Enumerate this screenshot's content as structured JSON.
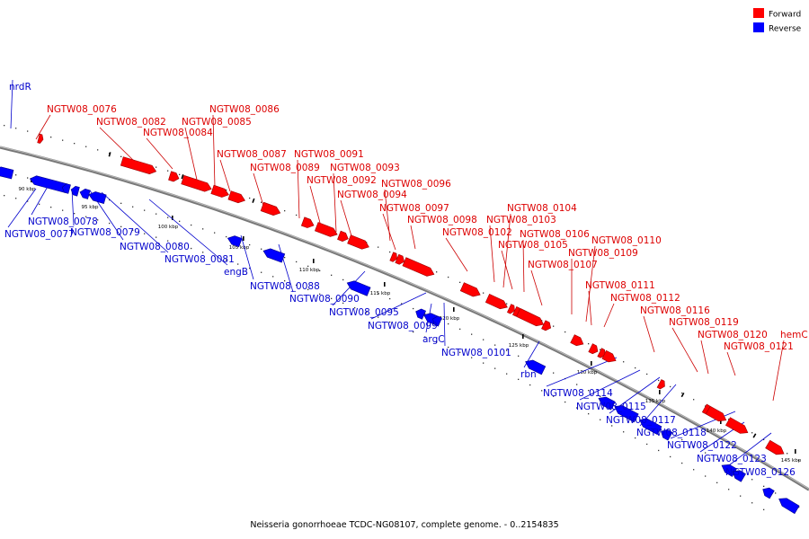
{
  "caption": "Neisseria gonorrhoeae TCDC-NG08107, complete genome. - 0..2154835",
  "colors": {
    "forward": "#ff0000",
    "reverse": "#0000ff",
    "forward_label": "#dd0000",
    "reverse_label": "#0000cc",
    "backbone": "#888888"
  },
  "legend": [
    {
      "label": "Forward",
      "color": "#ff0000"
    },
    {
      "label": "Reverse",
      "color": "#0000ff"
    }
  ],
  "ticks": [
    "90 kbp",
    "95 kbp",
    "100 kbp",
    "105 kbp",
    "110 kbp",
    "115 kbp",
    "120 kbp",
    "125 kbp",
    "130 kbp",
    "135 kbp",
    "140 kbp",
    "145 kbp"
  ],
  "genes": [
    {
      "name": "nrdR",
      "strand": "reverse"
    },
    {
      "name": "NGTW08_0076",
      "strand": "forward"
    },
    {
      "name": "NGTW08_0077",
      "strand": "reverse"
    },
    {
      "name": "NGTW08_0078",
      "strand": "reverse"
    },
    {
      "name": "NGTW08_0079",
      "strand": "reverse"
    },
    {
      "name": "NGTW08_0080",
      "strand": "reverse"
    },
    {
      "name": "NGTW08_0081",
      "strand": "reverse"
    },
    {
      "name": "NGTW08_0082",
      "strand": "forward"
    },
    {
      "name": "NGTW08_0084",
      "strand": "forward"
    },
    {
      "name": "NGTW08_0085",
      "strand": "forward"
    },
    {
      "name": "NGTW08_0086",
      "strand": "forward"
    },
    {
      "name": "NGTW08_0087",
      "strand": "forward"
    },
    {
      "name": "NGTW08_0088",
      "strand": "reverse"
    },
    {
      "name": "NGTW08_0089",
      "strand": "forward"
    },
    {
      "name": "engB",
      "strand": "reverse"
    },
    {
      "name": "NGTW08_0090",
      "strand": "reverse"
    },
    {
      "name": "NGTW08_0091",
      "strand": "forward"
    },
    {
      "name": "NGTW08_0092",
      "strand": "forward"
    },
    {
      "name": "NGTW08_0093",
      "strand": "forward"
    },
    {
      "name": "NGTW08_0094",
      "strand": "forward"
    },
    {
      "name": "NGTW08_0095",
      "strand": "reverse"
    },
    {
      "name": "NGTW08_0096",
      "strand": "forward"
    },
    {
      "name": "NGTW08_0097",
      "strand": "forward"
    },
    {
      "name": "NGTW08_0098",
      "strand": "forward"
    },
    {
      "name": "NGTW08_0099",
      "strand": "reverse"
    },
    {
      "name": "argC",
      "strand": "reverse"
    },
    {
      "name": "NGTW08_0101",
      "strand": "reverse"
    },
    {
      "name": "NGTW08_0102",
      "strand": "forward"
    },
    {
      "name": "NGTW08_0103",
      "strand": "forward"
    },
    {
      "name": "NGTW08_0104",
      "strand": "forward"
    },
    {
      "name": "NGTW08_0105",
      "strand": "forward"
    },
    {
      "name": "NGTW08_0106",
      "strand": "forward"
    },
    {
      "name": "NGTW08_0107",
      "strand": "forward"
    },
    {
      "name": "rbn",
      "strand": "reverse"
    },
    {
      "name": "NGTW08_0109",
      "strand": "forward"
    },
    {
      "name": "NGTW08_0110",
      "strand": "forward"
    },
    {
      "name": "NGTW08_0111",
      "strand": "forward"
    },
    {
      "name": "NGTW08_0112",
      "strand": "forward"
    },
    {
      "name": "NGTW08_0114",
      "strand": "reverse"
    },
    {
      "name": "NGTW08_0115",
      "strand": "reverse"
    },
    {
      "name": "NGTW08_0116",
      "strand": "forward"
    },
    {
      "name": "NGTW08_0117",
      "strand": "reverse"
    },
    {
      "name": "NGTW08_0118",
      "strand": "reverse"
    },
    {
      "name": "NGTW08_0119",
      "strand": "forward"
    },
    {
      "name": "NGTW08_0120",
      "strand": "forward"
    },
    {
      "name": "NGTW08_0121",
      "strand": "forward"
    },
    {
      "name": "NGTW08_0122",
      "strand": "reverse"
    },
    {
      "name": "NGTW08_0123",
      "strand": "reverse"
    },
    {
      "name": "hemC",
      "strand": "forward"
    },
    {
      "name": "NGTW08_0126",
      "strand": "reverse"
    }
  ]
}
